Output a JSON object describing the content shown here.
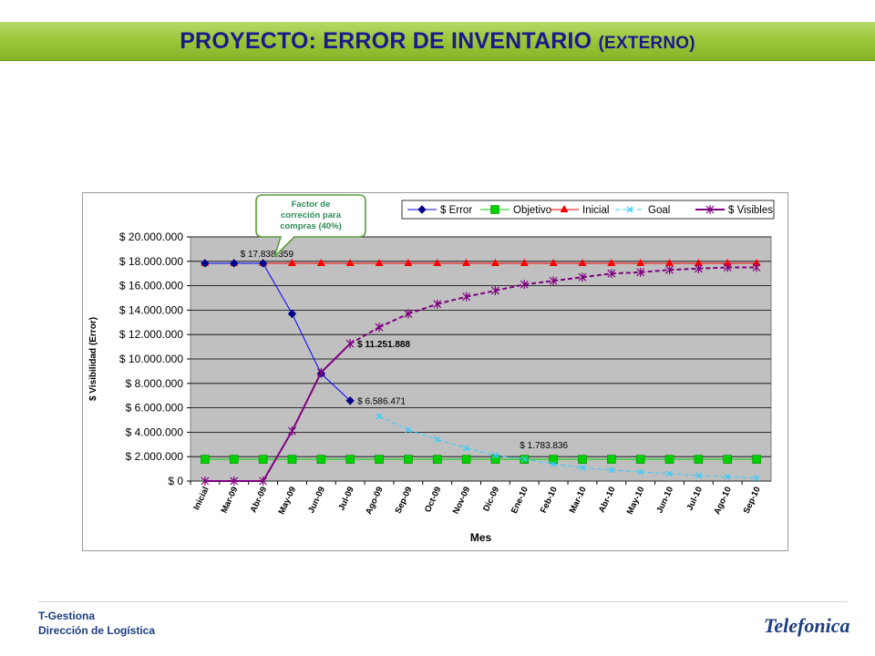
{
  "header": {
    "title_main": "PROYECTO: ERROR DE INVENTARIO",
    "title_suffix": "(EXTERNO)"
  },
  "footer": {
    "line1": "T-Gestiona",
    "line2": "Dirección de Logística",
    "logo_text": "Telefonica"
  },
  "callout": {
    "text_lines": [
      "Factor de",
      "correción para",
      "compras (40%)"
    ],
    "color": "#2e8b57"
  },
  "chart_data": {
    "type": "line",
    "categories": [
      "Inicial",
      "Mar-09",
      "Abr-09",
      "May-09",
      "Jun-09",
      "Jul-09",
      "Ago-09",
      "Sep-09",
      "Oct-09",
      "Nov-09",
      "Dic-09",
      "Ene-10",
      "Feb-10",
      "Mar-10",
      "Abr-10",
      "May-10",
      "Jun-10",
      "Jul-10",
      "Ago-10",
      "Sep-10"
    ],
    "xlabel": "Mes",
    "ylabel": "$ Visibilidad (Error)",
    "ylim": [
      0,
      20000000
    ],
    "yticks": [
      0,
      2000000,
      4000000,
      6000000,
      8000000,
      10000000,
      12000000,
      14000000,
      16000000,
      18000000,
      20000000
    ],
    "ytick_labels": [
      "$ 0",
      "$ 2.000.000",
      "$ 4.000.000",
      "$ 6.000.000",
      "$ 8.000.000",
      "$ 10.000.000",
      "$ 12.000.000",
      "$ 14.000.000",
      "$ 16.000.000",
      "$ 18.000.000",
      "$ 20.000.000"
    ],
    "grid": true,
    "legend_position": "top",
    "plot_background": "#c0c0c0",
    "series": [
      {
        "name": "$ Error",
        "color": "#0000ff",
        "marker": "diamond",
        "style": "solid",
        "values": [
          17838359,
          17838359,
          17838359,
          13700000,
          8800000,
          6586471,
          null,
          null,
          null,
          null,
          null,
          null,
          null,
          null,
          null,
          null,
          null,
          null,
          null,
          null
        ]
      },
      {
        "name": "Objetivo",
        "color": "#00d000",
        "marker": "square",
        "style": "solid",
        "values": [
          1783836,
          1783836,
          1783836,
          1783836,
          1783836,
          1783836,
          1783836,
          1783836,
          1783836,
          1783836,
          1783836,
          1783836,
          1783836,
          1783836,
          1783836,
          1783836,
          1783836,
          1783836,
          1783836,
          1783836
        ]
      },
      {
        "name": "Inicial",
        "color": "#ff0000",
        "marker": "triangle",
        "style": "solid",
        "values": [
          17838359,
          17838359,
          17838359,
          17838359,
          17838359,
          17838359,
          17838359,
          17838359,
          17838359,
          17838359,
          17838359,
          17838359,
          17838359,
          17838359,
          17838359,
          17838359,
          17838359,
          17838359,
          17838359,
          17838359
        ]
      },
      {
        "name": "Goal",
        "color": "#33ccff",
        "marker": "x",
        "style": "dashed",
        "values": [
          null,
          null,
          null,
          null,
          null,
          null,
          5300000,
          4200000,
          3400000,
          2700000,
          2100000,
          1783836,
          1400000,
          1100000,
          900000,
          750000,
          600000,
          450000,
          350000,
          250000
        ]
      },
      {
        "name": "$ Visibles",
        "color": "#800080",
        "marker": "star",
        "style": "solid",
        "values": [
          0,
          0,
          0,
          4100000,
          8900000,
          11251888,
          12600000,
          13700000,
          14500000,
          15100000,
          15600000,
          16100000,
          16400000,
          16700000,
          17000000,
          17100000,
          17300000,
          17400000,
          17500000,
          17500000
        ]
      }
    ],
    "solid_until_index": 5,
    "annotations": [
      {
        "text": "$ 17.838.359",
        "series": "$ Error",
        "index": 2
      },
      {
        "text": "$ 11.251.888",
        "series": "$ Visibles",
        "index": 5
      },
      {
        "text": "$ 6.586.471",
        "series": "$ Error",
        "index": 5
      },
      {
        "text": "$ 1.783.836",
        "series": "Goal",
        "index": 11
      }
    ]
  }
}
